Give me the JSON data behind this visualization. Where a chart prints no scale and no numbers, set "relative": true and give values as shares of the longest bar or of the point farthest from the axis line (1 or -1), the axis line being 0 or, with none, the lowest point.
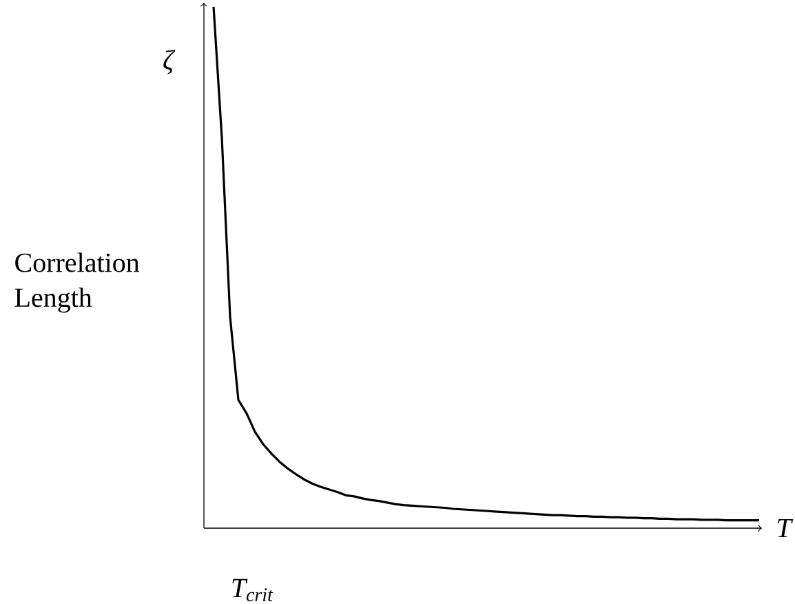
{
  "chart_data": {
    "type": "line",
    "relative": true,
    "ylabel": "Correlation Length",
    "xlabel": "T",
    "annotations": [
      "ζ",
      "T$_{crit}$"
    ],
    "categories": [
      null,
      null,
      null,
      null,
      null,
      null,
      null,
      null,
      null,
      null,
      null,
      null,
      null,
      null,
      null,
      null,
      null,
      null,
      null,
      null,
      null,
      null,
      null,
      null,
      null,
      null,
      null,
      null,
      null,
      null,
      null,
      null,
      null,
      null,
      null,
      null,
      null,
      null,
      null,
      null,
      null,
      null,
      null,
      null,
      null,
      null,
      null,
      null,
      null,
      null,
      null,
      null,
      null,
      null,
      null,
      null,
      null,
      null,
      null,
      null,
      null,
      null,
      null,
      null,
      null,
      null,
      null
    ],
    "values": [
      1.0,
      0.749,
      0.405,
      0.246,
      0.22,
      0.185,
      0.161,
      0.143,
      0.127,
      0.114,
      0.103,
      0.093,
      0.085,
      0.079,
      0.074,
      0.069,
      0.063,
      0.061,
      0.057,
      0.054,
      0.052,
      0.049,
      0.046,
      0.044,
      0.043,
      0.042,
      0.041,
      0.04,
      0.039,
      0.037,
      0.036,
      0.035,
      0.034,
      0.033,
      0.032,
      0.031,
      0.03,
      0.029,
      0.028,
      0.027,
      0.026,
      0.025,
      0.025,
      0.024,
      0.023,
      0.023,
      0.022,
      0.022,
      0.021,
      0.021,
      0.02,
      0.02,
      0.019,
      0.019,
      0.018,
      0.018,
      0.017,
      0.017,
      0.017,
      0.016,
      0.016,
      0.016,
      0.015,
      0.015,
      0.015,
      0.015,
      0.015
    ],
    "color": "#000000",
    "marker": "none",
    "line_style": "solid"
  }
}
